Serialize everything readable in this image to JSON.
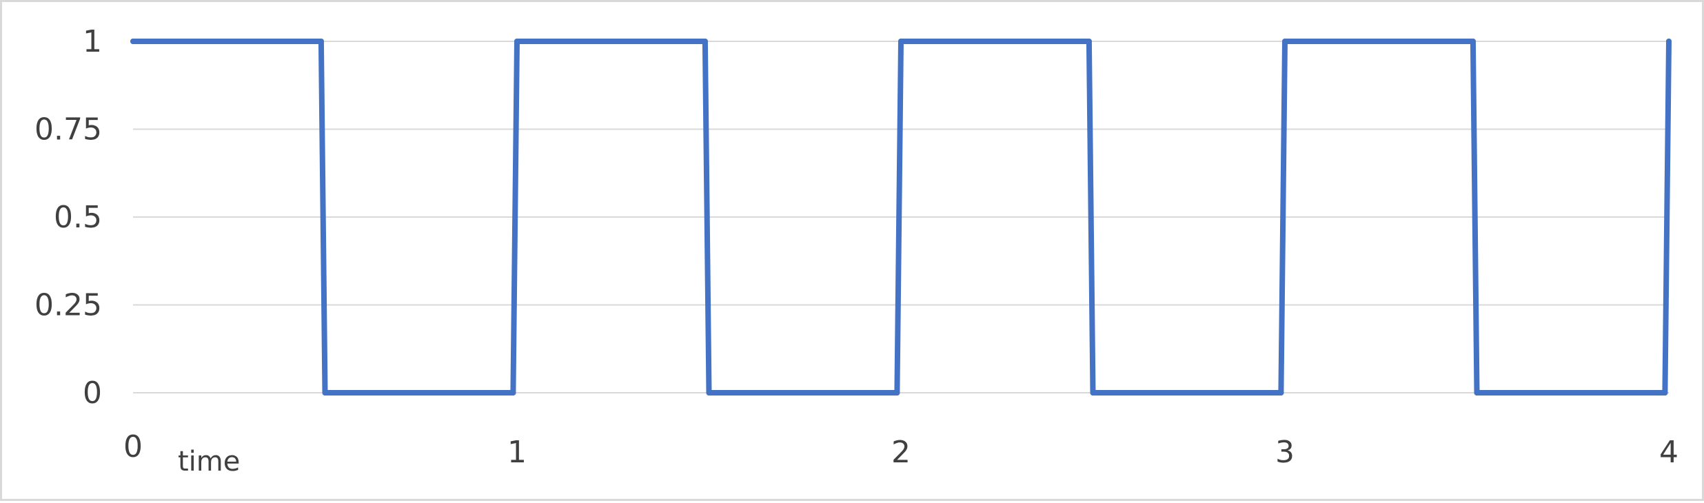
{
  "chart_data": {
    "type": "line",
    "title": "",
    "xlabel": "time",
    "ylabel": "",
    "xlim": [
      0,
      4
    ],
    "ylim": [
      0,
      1
    ],
    "grid": true,
    "legend": "none",
    "x_ticks": [
      {
        "value": 0,
        "label": "0"
      },
      {
        "value": 1,
        "label": "1"
      },
      {
        "value": 2,
        "label": "2"
      },
      {
        "value": 3,
        "label": "3"
      },
      {
        "value": 4,
        "label": "4"
      }
    ],
    "y_ticks": [
      {
        "value": 0,
        "label": "0"
      },
      {
        "value": 0.25,
        "label": "0.25"
      },
      {
        "value": 0.5,
        "label": "0.5"
      },
      {
        "value": 0.75,
        "label": "0.75"
      },
      {
        "value": 1,
        "label": "1"
      }
    ],
    "series": [
      {
        "color": "#4472c4",
        "x": [
          0,
          0.49,
          0.5,
          0.99,
          1.0,
          1.49,
          1.5,
          1.99,
          2.0,
          2.49,
          2.5,
          2.99,
          3.0,
          3.49,
          3.5,
          3.99,
          4.0
        ],
        "y": [
          1,
          1,
          0,
          0,
          1,
          1,
          0,
          0,
          1,
          1,
          0,
          0,
          1,
          1,
          0,
          0,
          1
        ]
      }
    ]
  }
}
